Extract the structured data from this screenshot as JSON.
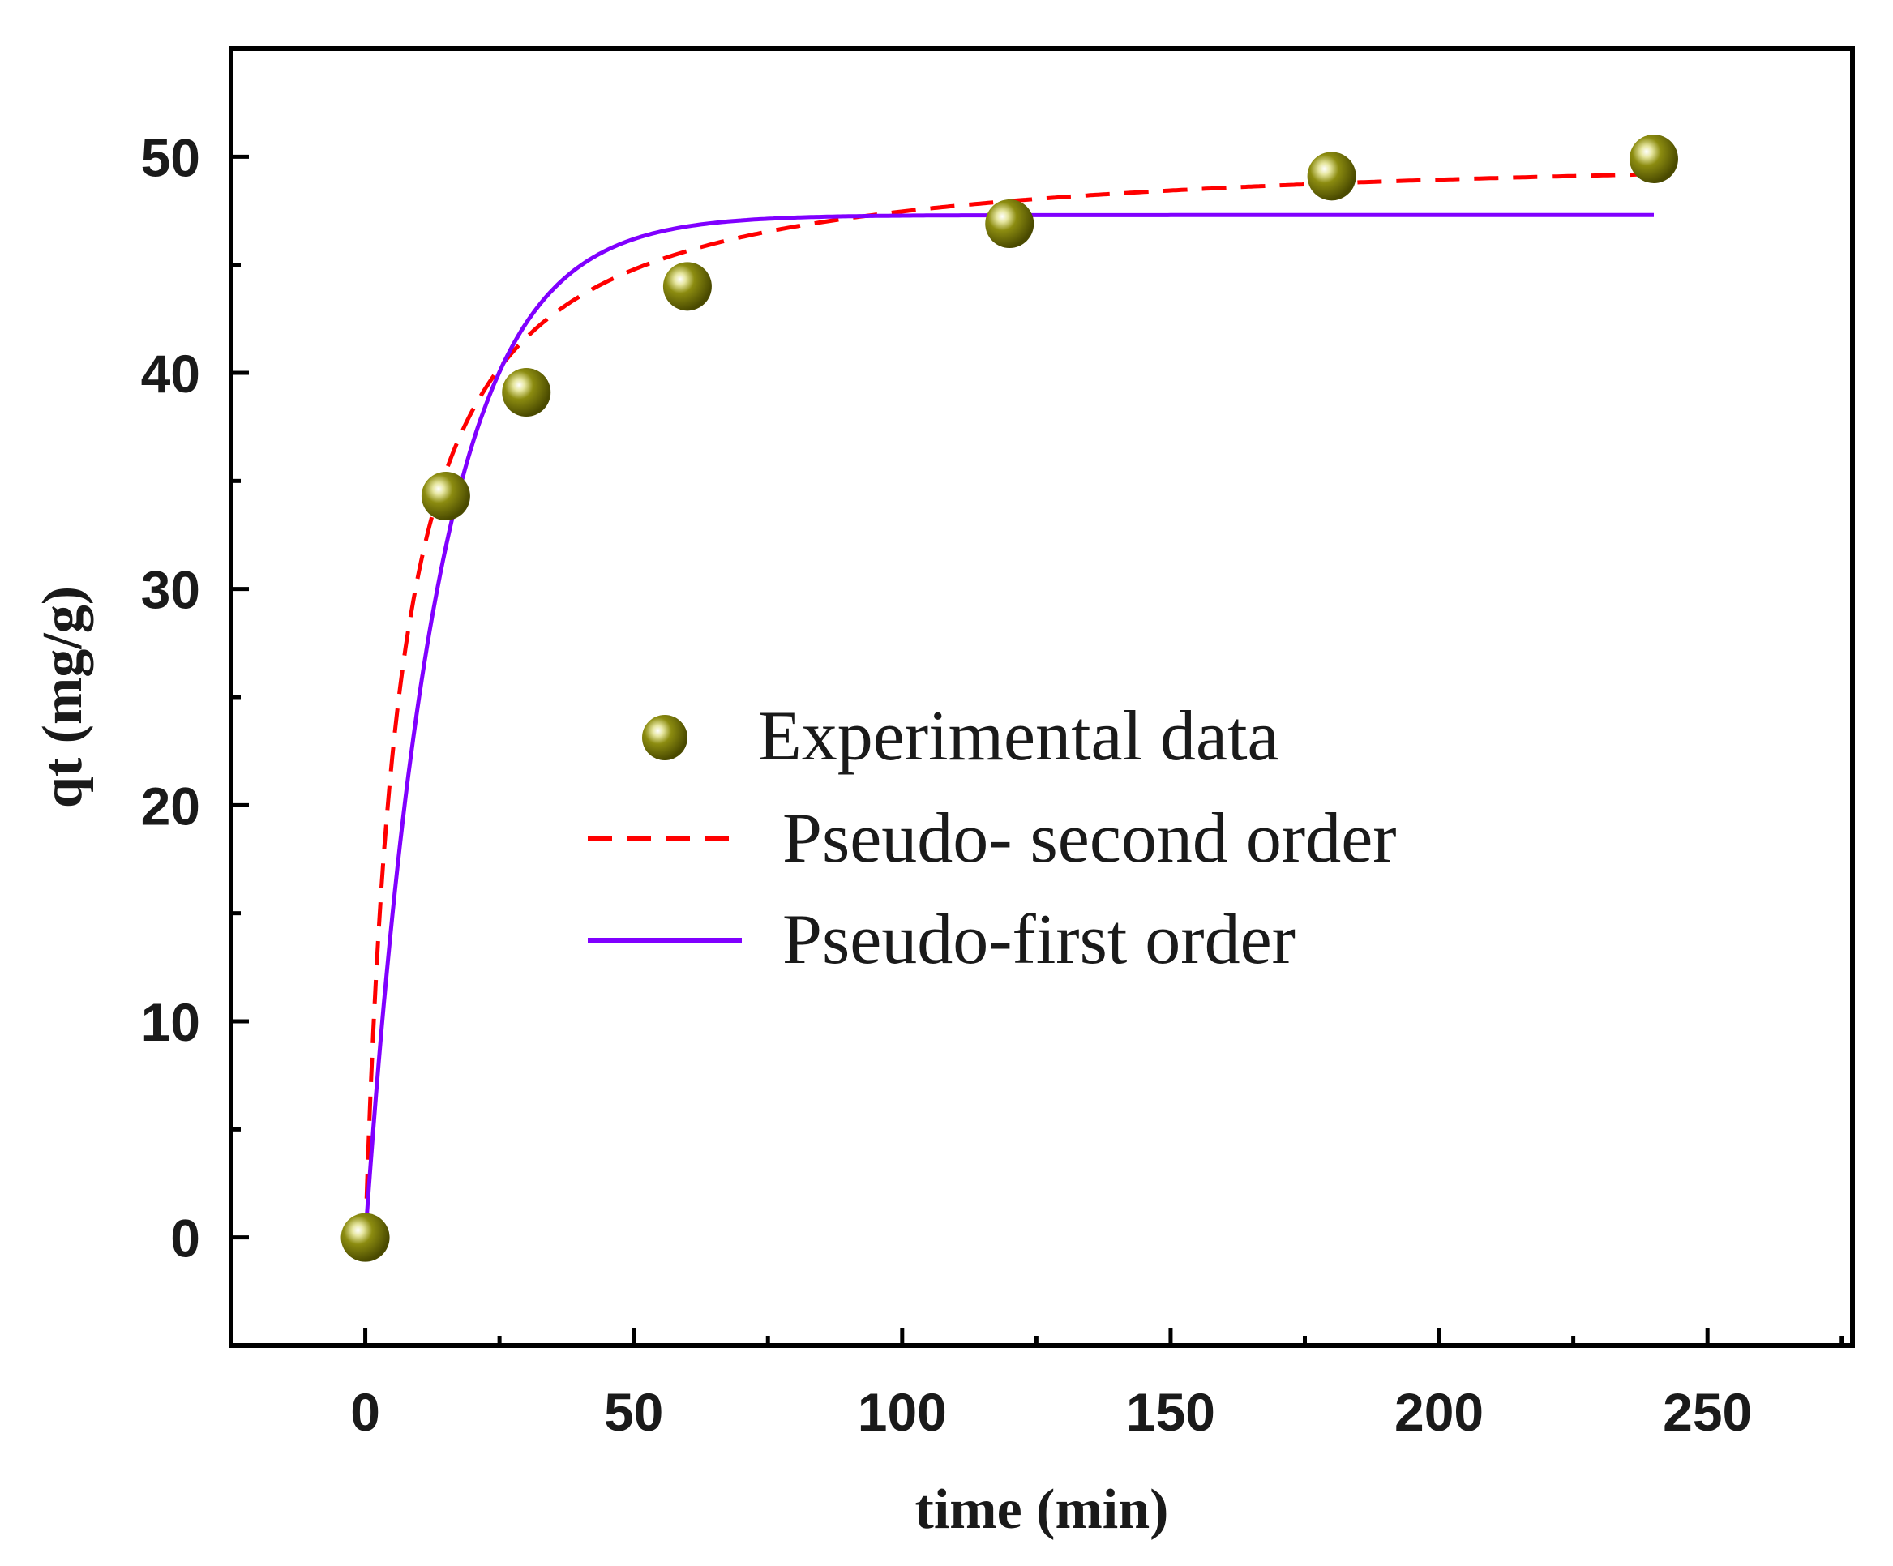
{
  "chart_data": {
    "type": "scatter",
    "xlabel": "time (min)",
    "ylabel": "qt (mg/g)",
    "xlim": [
      -25,
      277
    ],
    "ylim": [
      -5,
      55
    ],
    "xticks": [
      0,
      50,
      100,
      150,
      200,
      250
    ],
    "yticks": [
      0,
      10,
      20,
      30,
      40,
      50
    ],
    "xtick_labels": [
      "0",
      "50",
      "100",
      "150",
      "200",
      "250"
    ],
    "ytick_labels": [
      "0",
      "10",
      "20",
      "30",
      "40",
      "50"
    ],
    "series": [
      {
        "name": "Experimental data",
        "kind": "scatter",
        "color": "#7a7a00",
        "x": [
          0,
          15,
          30,
          60,
          120,
          180,
          240
        ],
        "y": [
          0,
          34.3,
          39.1,
          44.0,
          46.9,
          49.1,
          49.9
        ]
      },
      {
        "name": "Pseudo- second order",
        "kind": "line",
        "style": "dashed",
        "color": "#ff0000",
        "qe": 50.5,
        "k2": 0.0031,
        "x_range": [
          0,
          240
        ]
      },
      {
        "name": "Pseudo-first order",
        "kind": "line",
        "style": "solid",
        "color": "#8000ff",
        "qe": 47.3,
        "k1": 0.075,
        "x_range": [
          0,
          240
        ]
      }
    ],
    "legend": {
      "position": "center",
      "entries": [
        "Experimental data",
        "Pseudo- second order",
        "Pseudo-first order"
      ]
    }
  }
}
